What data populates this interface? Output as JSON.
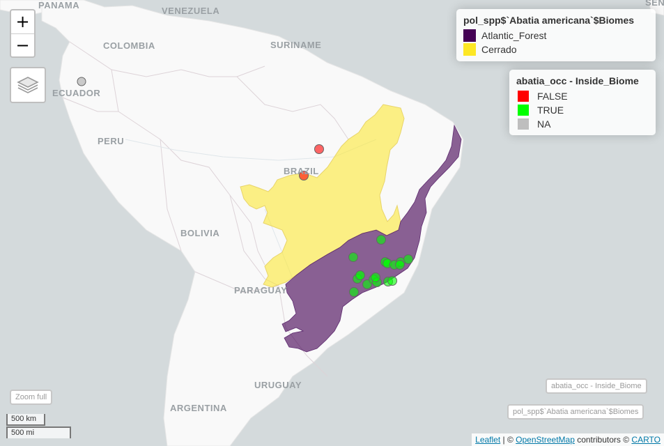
{
  "map": {
    "countries": [
      {
        "id": "panama",
        "name": "PANAMA"
      },
      {
        "id": "venezuela",
        "name": "VENEZUELA"
      },
      {
        "id": "colombia",
        "name": "COLOMBIA"
      },
      {
        "id": "suriname",
        "name": "SURINAME"
      },
      {
        "id": "ecuador",
        "name": "ECUADOR"
      },
      {
        "id": "peru",
        "name": "PERU"
      },
      {
        "id": "brazil",
        "name": "BRAZIL"
      },
      {
        "id": "bolivia",
        "name": "BOLIVIA"
      },
      {
        "id": "paraguay",
        "name": "PARAGUAY"
      },
      {
        "id": "uruguay",
        "name": "URUGUAY"
      },
      {
        "id": "argentina",
        "name": "ARGENTINA"
      },
      {
        "id": "senegal_partial",
        "name": "SENE"
      }
    ],
    "colors": {
      "ocean": "#d4dadc",
      "land": "#f9f9f9",
      "atlantic_forest": "#440154",
      "cerrado": "#fde725",
      "point_false": "#ff0000",
      "point_true": "#00ff00",
      "point_na": "#bebebe"
    }
  },
  "controls": {
    "zoom_in": "+",
    "zoom_out": "−",
    "layers_icon": "layers-icon",
    "zoom_full": "Zoom full",
    "layer_button_occ": "abatia_occ - Inside_Biome",
    "layer_button_biomes": "pol_spp$`Abatia americana`$Biomes"
  },
  "legend_biomes": {
    "title": "pol_spp$`Abatia americana`$Biomes",
    "items": [
      {
        "label": "Atlantic_Forest",
        "color": "#440154"
      },
      {
        "label": "Cerrado",
        "color": "#fde725"
      }
    ]
  },
  "legend_occ": {
    "title": "abatia_occ - Inside_Biome",
    "items": [
      {
        "label": "FALSE",
        "color": "#ff0000"
      },
      {
        "label": "TRUE",
        "color": "#00ff00"
      },
      {
        "label": "NA",
        "color": "#bebebe"
      }
    ]
  },
  "scale": {
    "metric": "500 km",
    "imperial": "500 mi"
  },
  "attribution": {
    "leaflet": "Leaflet",
    "sep": " | © ",
    "osm": "OpenStreetMap",
    "mid": " contributors © ",
    "carto": "CARTO"
  }
}
